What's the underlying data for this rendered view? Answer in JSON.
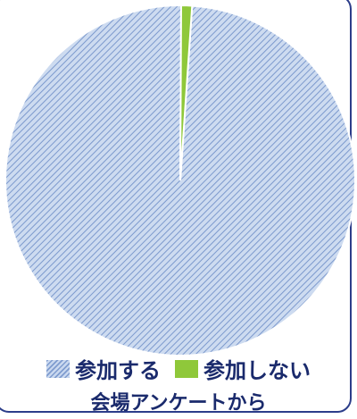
{
  "chart_data": {
    "type": "pie",
    "slices": [
      {
        "label": "参加する",
        "value": 99,
        "color": "#9ab3de",
        "pattern": "diagonal-hatch"
      },
      {
        "label": "参加しない",
        "value": 1,
        "color": "#8fc83a",
        "pattern": "solid"
      }
    ],
    "legend_position": "bottom",
    "caption": "会場アンケートから"
  }
}
